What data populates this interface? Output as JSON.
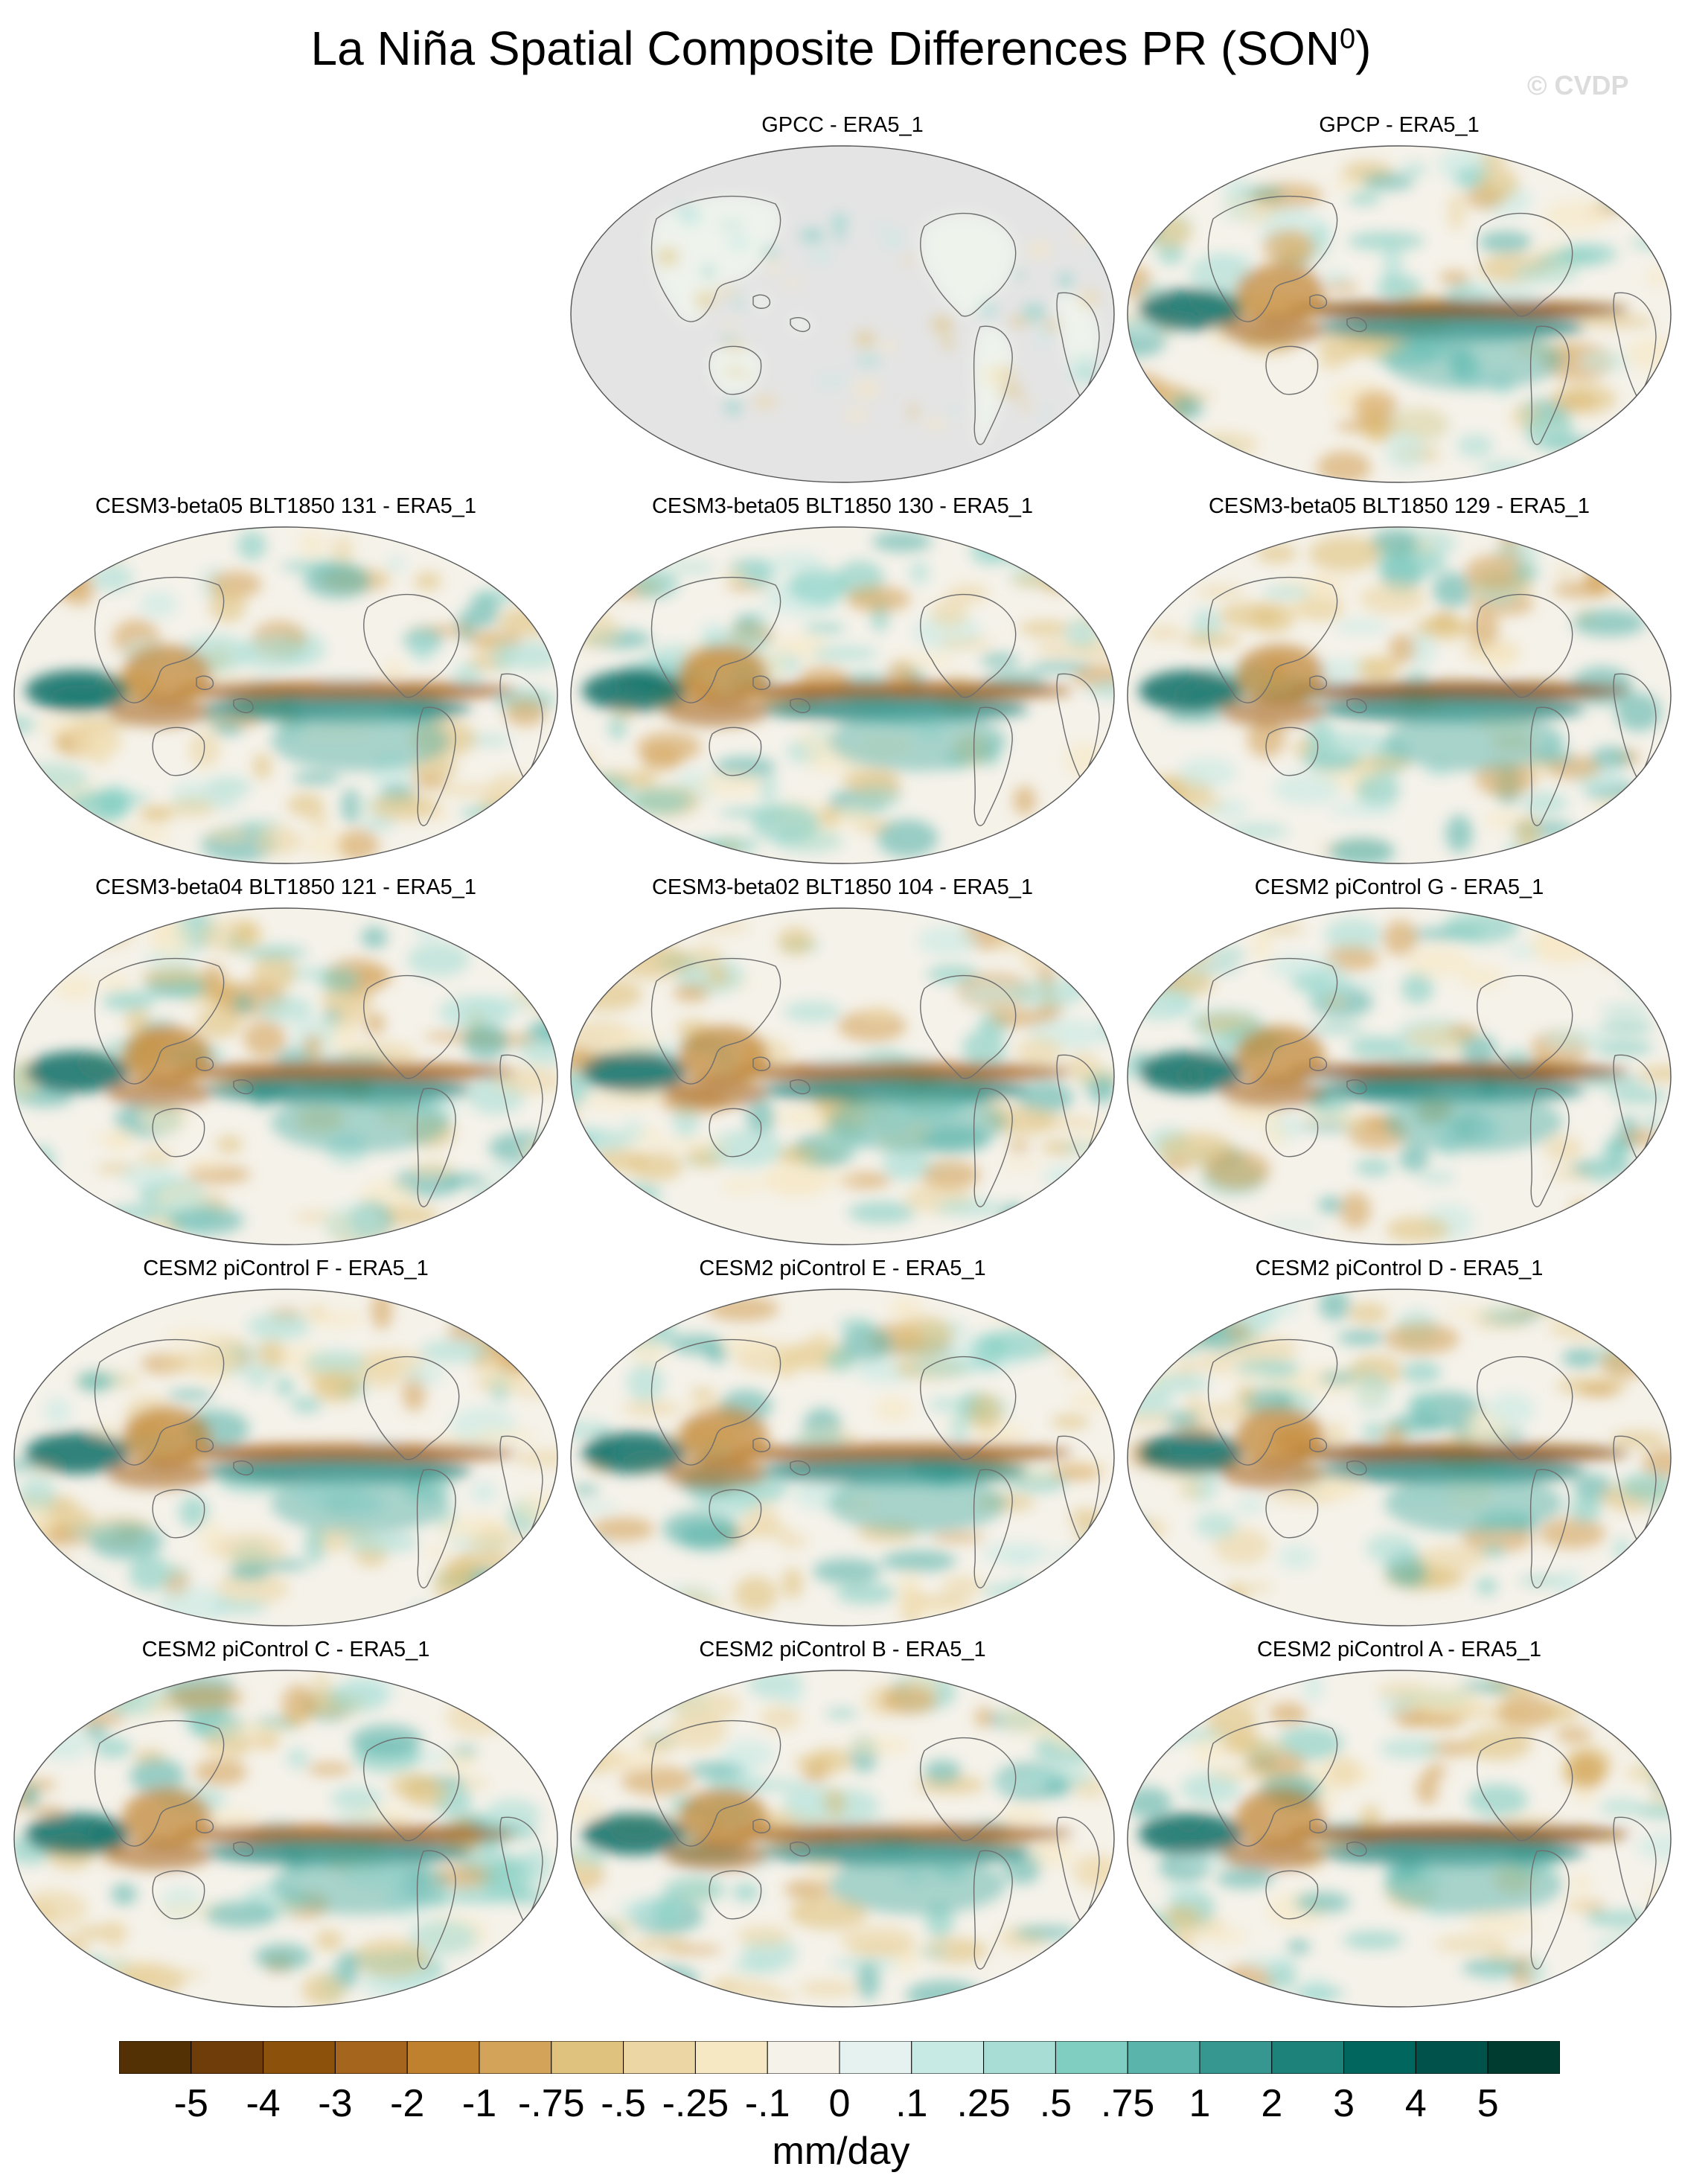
{
  "title": {
    "main": "La Niña Spatial Composite Differences PR (SON",
    "superscript": "0",
    "closing": ")"
  },
  "watermark": "© CVDP",
  "panels": [
    {
      "title": "GPCC - ERA5_1",
      "land_only": true
    },
    {
      "title": "GPCP - ERA5_1",
      "land_only": false
    },
    {
      "title": "CESM3-beta05 BLT1850 131 - ERA5_1",
      "land_only": false
    },
    {
      "title": "CESM3-beta05 BLT1850 130 - ERA5_1",
      "land_only": false
    },
    {
      "title": "CESM3-beta05 BLT1850 129 - ERA5_1",
      "land_only": false
    },
    {
      "title": "CESM3-beta04 BLT1850 121 - ERA5_1",
      "land_only": false
    },
    {
      "title": "CESM3-beta02 BLT1850 104 - ERA5_1",
      "land_only": false
    },
    {
      "title": "CESM2 piControl G - ERA5_1",
      "land_only": false
    },
    {
      "title": "CESM2 piControl F - ERA5_1",
      "land_only": false
    },
    {
      "title": "CESM2 piControl E - ERA5_1",
      "land_only": false
    },
    {
      "title": "CESM2 piControl D - ERA5_1",
      "land_only": false
    },
    {
      "title": "CESM2 piControl C - ERA5_1",
      "land_only": false
    },
    {
      "title": "CESM2 piControl B - ERA5_1",
      "land_only": false
    },
    {
      "title": "CESM2 piControl A - ERA5_1",
      "land_only": false
    }
  ],
  "colorbar": {
    "units": "mm/day",
    "labels": [
      "-5",
      "-4",
      "-3",
      "-2",
      "-1",
      "-.75",
      "-.5",
      "-.25",
      "-.1",
      "0",
      ".1",
      ".25",
      ".5",
      ".75",
      "1",
      "2",
      "3",
      "4",
      "5"
    ],
    "colors": [
      "#543005",
      "#6f3d0a",
      "#8c510a",
      "#a6651c",
      "#bf812d",
      "#d3a35a",
      "#dfc27d",
      "#ebd6a4",
      "#f6e8c3",
      "#f5f2ea",
      "#e6f2ef",
      "#c7eae5",
      "#a8ddd5",
      "#80cdc1",
      "#5ab4ac",
      "#35978f",
      "#1d8279",
      "#01665e",
      "#00524a",
      "#003c30"
    ]
  },
  "map_colors": {
    "ocean_neutral": "#f5f2ea",
    "missing": "#e4e4e4",
    "coast": "#6e6e6e"
  }
}
